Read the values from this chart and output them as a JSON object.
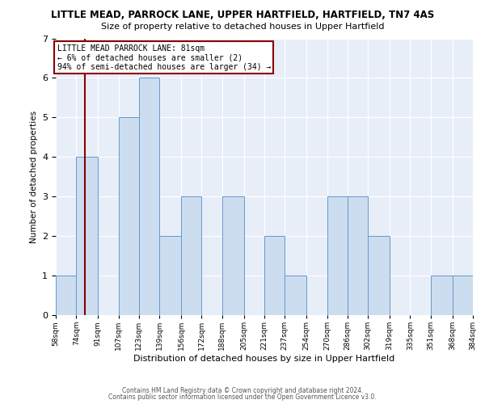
{
  "title": "LITTLE MEAD, PARROCK LANE, UPPER HARTFIELD, HARTFIELD, TN7 4AS",
  "subtitle": "Size of property relative to detached houses in Upper Hartfield",
  "xlabel": "Distribution of detached houses by size in Upper Hartfield",
  "ylabel": "Number of detached properties",
  "bin_edges": [
    58,
    74,
    91,
    107,
    123,
    139,
    156,
    172,
    188,
    205,
    221,
    237,
    254,
    270,
    286,
    302,
    319,
    335,
    351,
    368,
    384
  ],
  "bar_heights": [
    1,
    4,
    0,
    5,
    6,
    2,
    3,
    0,
    3,
    0,
    2,
    1,
    0,
    3,
    3,
    2,
    0,
    0,
    1,
    1
  ],
  "bar_color": "#ccddf0",
  "bar_edge_color": "#6699cc",
  "ref_line_x": 81,
  "ref_line_color": "#8b0000",
  "annotation_line1": "LITTLE MEAD PARROCK LANE: 81sqm",
  "annotation_line2": "← 6% of detached houses are smaller (2)",
  "annotation_line3": "94% of semi-detached houses are larger (34) →",
  "annotation_box_color": "#8b0000",
  "ylim": [
    0,
    7
  ],
  "yticks": [
    0,
    1,
    2,
    3,
    4,
    5,
    6,
    7
  ],
  "bg_color": "#e8eef8",
  "footer_line1": "Contains HM Land Registry data © Crown copyright and database right 2024.",
  "footer_line2": "Contains public sector information licensed under the Open Government Licence v3.0.",
  "tick_labels": [
    "58sqm",
    "74sqm",
    "91sqm",
    "107sqm",
    "123sqm",
    "139sqm",
    "156sqm",
    "172sqm",
    "188sqm",
    "205sqm",
    "221sqm",
    "237sqm",
    "254sqm",
    "270sqm",
    "286sqm",
    "302sqm",
    "319sqm",
    "335sqm",
    "351sqm",
    "368sqm",
    "384sqm"
  ]
}
